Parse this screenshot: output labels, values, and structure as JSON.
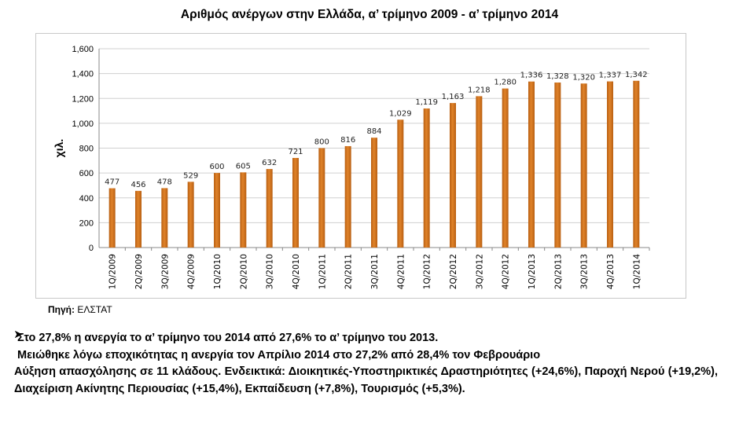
{
  "title": "Αριθμός ανέργων στην Ελλάδα, α’ τρίμηνο 2009 - α’ τρίμηνο 2014",
  "source": {
    "label": "Πηγή:",
    "value": "ΕΛΣΤΑΤ"
  },
  "bullets": [
    "Στο 27,8% η ανεργία το α’ τρίμηνο του 2014 από 27,6% το α’ τρίμηνο του 2013.",
    "Μειώθηκε λόγω εποχικότητας η ανεργία τον Απρίλιο 2014 στο 27,2% από 28,4% τον Φεβρουάριο",
    "Αύξηση απασχόλησης σε 11 κλάδους. Ενδεικτικά: Διοικητικές-Υποστηρικτικές Δραστηριότητες (+24,6%), Παροχή Νερού (+19,2%), Διαχείριση Ακίνητης Περιουσίας (+15,4%), Εκπαίδευση (+7,8%), Τουρισμός (+5,3%)."
  ],
  "colors": {
    "bar": "#e0832a",
    "bar_dark": "#b85f12",
    "grid": "#d0d0d0",
    "arrow": "#000000"
  },
  "chart_data": {
    "type": "bar",
    "ylabel": "χιλ.",
    "xlabel": "",
    "ylim": [
      0,
      1600
    ],
    "yticks": [
      "0",
      "200",
      "400",
      "600",
      "800",
      "1,000",
      "1,200",
      "1,400",
      "1,600"
    ],
    "grid": true,
    "categories": [
      "1Q/2009",
      "2Q/2009",
      "3Q/2009",
      "4Q/2009",
      "1Q/2010",
      "2Q/2010",
      "3Q/2010",
      "4Q/2010",
      "1Q/2011",
      "2Q/2011",
      "3Q/2011",
      "4Q/2011",
      "1Q/2012",
      "2Q/2012",
      "3Q/2012",
      "4Q/2012",
      "1Q/2013",
      "2Q/2013",
      "3Q/2013",
      "4Q/2013",
      "1Q/2014"
    ],
    "values": [
      477,
      456,
      478,
      529,
      600,
      605,
      632,
      721,
      800,
      816,
      884,
      1029,
      1119,
      1163,
      1218,
      1280,
      1336,
      1328,
      1320,
      1337,
      1342
    ],
    "data_labels": [
      "477",
      "456",
      "478",
      "529",
      "600",
      "605",
      "632",
      "721",
      "800",
      "816",
      "884",
      "1,029",
      "1,119",
      "1,163",
      "1,218",
      "1,280",
      "1,336",
      "1,328",
      "1,320",
      "1,337",
      "1,342"
    ]
  }
}
